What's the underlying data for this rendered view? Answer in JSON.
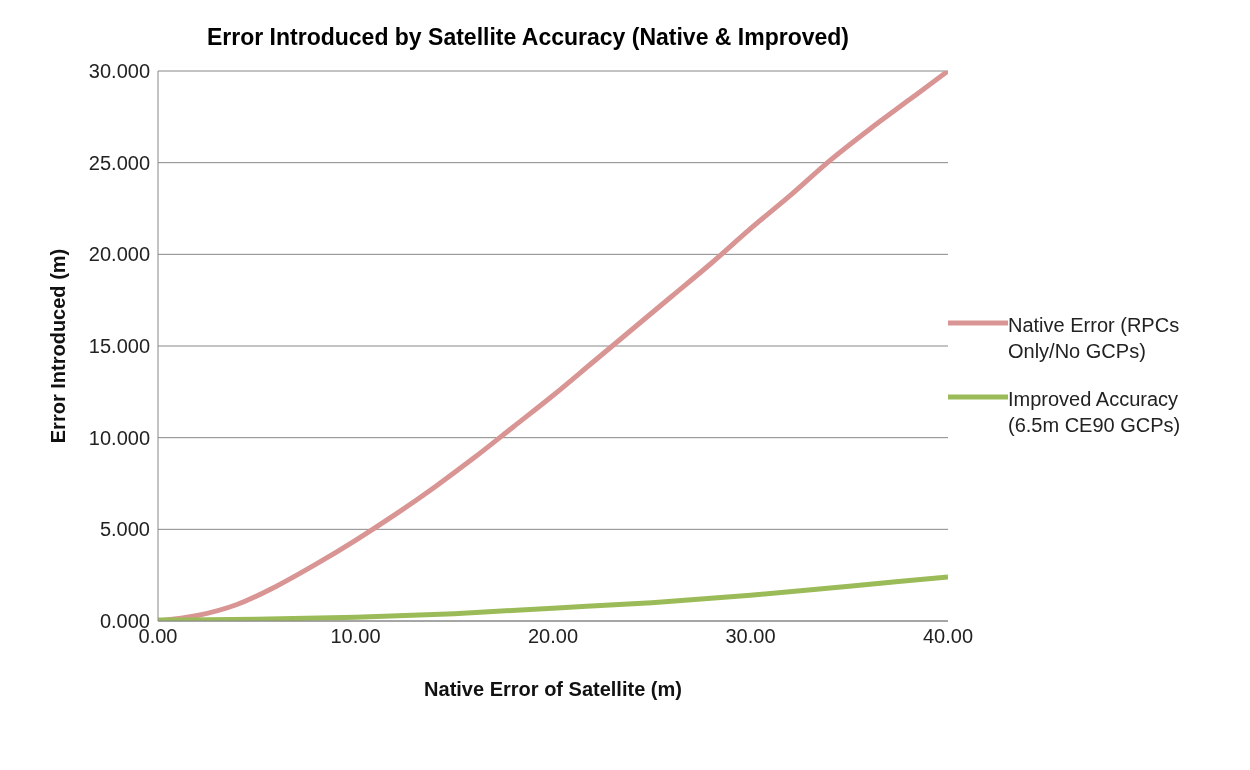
{
  "chart_data": {
    "type": "line",
    "title": "Error Introduced by Satellite Accuracy (Native & Improved)",
    "xlabel": "Native  Error of Satellite (m)",
    "ylabel": "Error Introduced (m)",
    "xlim": [
      0,
      40
    ],
    "xticks": [
      {
        "value": 0,
        "label": "0.00"
      },
      {
        "value": 10,
        "label": "10.00"
      },
      {
        "value": 20,
        "label": "20.00"
      },
      {
        "value": 30,
        "label": "30.00"
      },
      {
        "value": 40,
        "label": "40.00"
      }
    ],
    "ylim": [
      0,
      30
    ],
    "yticks": [
      {
        "value": 0,
        "label": "0.000"
      },
      {
        "value": 5,
        "label": "5.000"
      },
      {
        "value": 10,
        "label": "10.000"
      },
      {
        "value": 15,
        "label": "15.000"
      },
      {
        "value": 20,
        "label": "20.000"
      },
      {
        "value": 25,
        "label": "25.000"
      },
      {
        "value": 30,
        "label": "30.000"
      }
    ],
    "grid": "y",
    "legend": "right",
    "marker": "none",
    "line_style": "solid",
    "series": [
      {
        "name": "Native Error (RPCs Only/No GCPs)",
        "color": "#d99594",
        "x": [
          0,
          2,
          4,
          6,
          8,
          10,
          12,
          14,
          16,
          18,
          20,
          22,
          24,
          26,
          28,
          30,
          32,
          34,
          36,
          38,
          40
        ],
        "values": [
          0,
          0.3,
          0.9,
          1.9,
          3.1,
          4.4,
          5.8,
          7.3,
          8.9,
          10.6,
          12.3,
          14.1,
          15.9,
          17.7,
          19.5,
          21.4,
          23.2,
          25.1,
          26.8,
          28.4,
          30
        ]
      },
      {
        "name": "Improved Accuracy (6.5m CE90 GCPs)",
        "color": "#9bbb59",
        "x": [
          0,
          5,
          10,
          15,
          20,
          25,
          30,
          35,
          40
        ],
        "values": [
          0.05,
          0.1,
          0.2,
          0.4,
          0.7,
          1.0,
          1.4,
          1.9,
          2.4
        ]
      }
    ]
  }
}
